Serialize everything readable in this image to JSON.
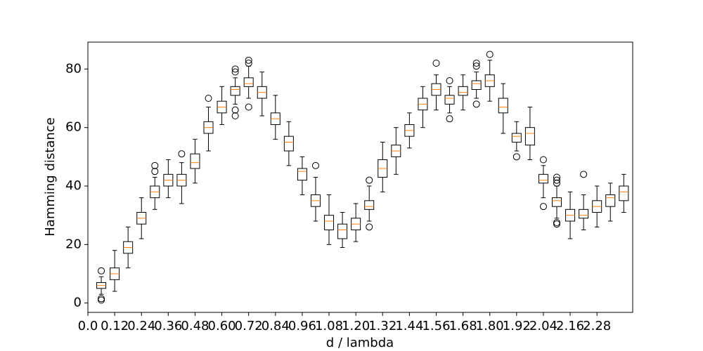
{
  "chart_data": {
    "type": "box",
    "xlabel": "d / lambda",
    "ylabel": "Hamming distance",
    "x": [
      0.06,
      0.12,
      0.18,
      0.24,
      0.3,
      0.36,
      0.42,
      0.48,
      0.54,
      0.6,
      0.66,
      0.72,
      0.78,
      0.84,
      0.9,
      0.96,
      1.02,
      1.08,
      1.14,
      1.2,
      1.26,
      1.32,
      1.38,
      1.44,
      1.5,
      1.56,
      1.62,
      1.68,
      1.74,
      1.8,
      1.86,
      1.92,
      1.98,
      2.04,
      2.1,
      2.16,
      2.22,
      2.28,
      2.34,
      2.4
    ],
    "medians": [
      6,
      10,
      19,
      29,
      38,
      42,
      42,
      48,
      60,
      67,
      73,
      75,
      72,
      63,
      55,
      45,
      35,
      28,
      25,
      27,
      33,
      46,
      52,
      59,
      68,
      73,
      70,
      72,
      75,
      76,
      67,
      57,
      58,
      42,
      35,
      30,
      30,
      33,
      36,
      38
    ],
    "q1": [
      5,
      8,
      17,
      27,
      36,
      40,
      40,
      46,
      58,
      65,
      71,
      74,
      70,
      61,
      52,
      42,
      33,
      25,
      22,
      25,
      32,
      43,
      50,
      57,
      66,
      71,
      68,
      71,
      73,
      74,
      65,
      55,
      54,
      41,
      33,
      28,
      29,
      31,
      33,
      35
    ],
    "q3": [
      7,
      12,
      21,
      31,
      40,
      44,
      44,
      51,
      62,
      69,
      74,
      77,
      74,
      65,
      57,
      46,
      37,
      30,
      27,
      29,
      35,
      49,
      54,
      61,
      70,
      75,
      71,
      74,
      76,
      78,
      70,
      58,
      60,
      44,
      36,
      32,
      32,
      35,
      37,
      40
    ],
    "whisker_low": [
      3,
      4,
      12,
      22,
      32,
      36,
      34,
      41,
      52,
      61,
      68,
      70,
      64,
      56,
      47,
      37,
      28,
      20,
      19,
      21,
      28,
      38,
      44,
      53,
      60,
      66,
      65,
      66,
      70,
      69,
      58,
      52,
      49,
      36,
      29,
      22,
      25,
      26,
      28,
      31
    ],
    "whisker_high": [
      9,
      18,
      26,
      36,
      43,
      49,
      48,
      56,
      67,
      74,
      77,
      81,
      79,
      71,
      62,
      50,
      43,
      37,
      31,
      34,
      40,
      55,
      60,
      65,
      74,
      78,
      74,
      78,
      79,
      83,
      75,
      62,
      67,
      47,
      40,
      38,
      37,
      40,
      41,
      44
    ],
    "fliers": [
      [
        1,
        1.5,
        11
      ],
      [],
      [],
      [],
      [
        45,
        47
      ],
      [],
      [
        51
      ],
      [],
      [
        70
      ],
      [],
      [
        64,
        66,
        79,
        80
      ],
      [
        67,
        82,
        83
      ],
      [],
      [],
      [],
      [],
      [
        47
      ],
      [],
      [],
      [],
      [
        26,
        42
      ],
      [],
      [],
      [],
      [],
      [
        82
      ],
      [
        63,
        76
      ],
      [],
      [
        68,
        81,
        82
      ],
      [
        85
      ],
      [],
      [
        50
      ],
      [],
      [
        33,
        49
      ],
      [
        27,
        27.5,
        41,
        42,
        43
      ],
      [],
      [
        44
      ],
      [],
      [],
      []
    ],
    "box_color": "#000000",
    "median_color": "#ff7f0e",
    "xlim": [
      0,
      2.44
    ],
    "ylim": [
      -3.2,
      89.2
    ],
    "xticks": [
      {
        "value": 0,
        "label": "0.0"
      },
      0.12,
      0.24,
      0.36,
      0.48,
      {
        "value": 0.6,
        "label": "0.60"
      },
      0.72,
      0.84,
      0.96,
      1.08,
      {
        "value": 1.2,
        "label": "1.20"
      },
      1.32,
      1.44,
      1.56,
      1.68,
      {
        "value": 1.8,
        "label": "1.80"
      },
      1.92,
      2.04,
      2.16,
      2.28
    ],
    "yticks": [
      0,
      20,
      40,
      60,
      80
    ]
  }
}
